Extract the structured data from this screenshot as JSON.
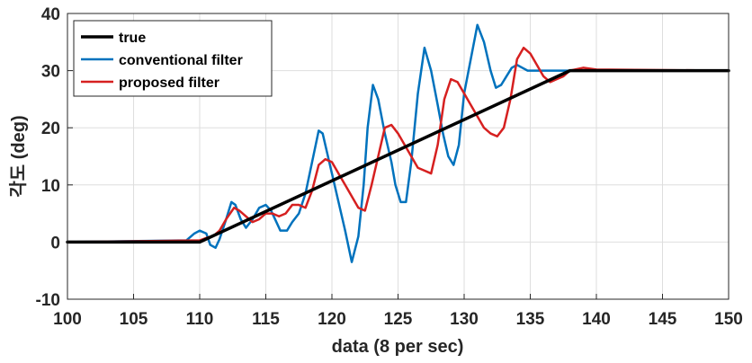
{
  "chart_data": {
    "type": "line",
    "xlabel": "data (8 per sec)",
    "ylabel": "각도 (deg)",
    "xlim": [
      100,
      150
    ],
    "ylim": [
      -10,
      40
    ],
    "xticks": [
      "100",
      "105",
      "110",
      "115",
      "120",
      "125",
      "130",
      "135",
      "140",
      "145",
      "150"
    ],
    "yticks": [
      "-10",
      "0",
      "10",
      "20",
      "30",
      "40"
    ],
    "grid": true,
    "legend_position": "top-left",
    "series": [
      {
        "name": "true",
        "color": "#000000",
        "width": 3.5,
        "x": [
          100,
          110,
          138,
          150
        ],
        "y": [
          0,
          0,
          30,
          30
        ]
      },
      {
        "name": "conventional filter",
        "color": "#0072BD",
        "width": 2.5,
        "x": [
          100,
          109,
          109.6,
          110,
          110.5,
          110.8,
          111.2,
          111.5,
          112,
          112.4,
          112.7,
          113.1,
          113.5,
          114,
          114.5,
          115,
          115.4,
          115.7,
          116.1,
          116.6,
          117,
          117.5,
          118,
          118.5,
          119,
          119.3,
          119.7,
          120.1,
          120.5,
          121,
          121.5,
          122,
          122.4,
          122.7,
          123.1,
          123.5,
          124,
          124.5,
          124.8,
          125.2,
          125.6,
          126,
          126.5,
          127,
          127.5,
          128,
          128.4,
          128.8,
          129.2,
          129.6,
          130,
          130.5,
          131,
          131.5,
          132,
          132.4,
          132.8,
          133.2,
          133.6,
          134,
          134.4,
          134.8,
          135.1,
          135.6,
          136,
          136.5,
          137,
          137.5,
          138,
          139,
          140,
          150
        ],
        "y": [
          0,
          0.3,
          1.5,
          2,
          1.5,
          -0.5,
          -1,
          0.5,
          4,
          7,
          6.5,
          4,
          2.5,
          4,
          6,
          6.5,
          5.5,
          4,
          2,
          2,
          3.5,
          5,
          8.5,
          14,
          19.5,
          19,
          15,
          11,
          7,
          2,
          -3.5,
          1,
          10,
          20,
          27.5,
          25,
          19,
          14,
          10,
          7,
          7,
          14,
          26,
          34,
          30,
          24,
          19,
          15,
          13.5,
          17,
          26,
          32,
          38,
          35,
          30,
          27,
          27.5,
          29,
          30.5,
          31,
          30.5,
          30,
          30,
          30,
          30,
          30,
          30,
          30,
          30,
          30,
          30,
          30
        ]
      },
      {
        "name": "proposed filter",
        "color": "#D62020",
        "width": 2.5,
        "x": [
          100,
          107,
          110,
          110.6,
          111,
          111.5,
          112,
          112.6,
          113,
          113.5,
          114,
          114.5,
          115,
          115.5,
          116,
          116.5,
          117,
          117.5,
          118,
          118.5,
          119,
          119.5,
          120,
          120.5,
          121,
          121.5,
          122,
          122.5,
          123,
          123.5,
          124,
          124.5,
          125,
          125.5,
          126,
          126.5,
          127,
          127.5,
          128,
          128.5,
          129,
          129.5,
          130,
          130.5,
          131,
          131.5,
          132,
          132.5,
          133,
          133.5,
          134,
          134.5,
          135,
          135.5,
          136,
          136.5,
          137,
          137.5,
          138,
          139,
          140,
          150
        ],
        "y": [
          0,
          0.2,
          0.3,
          0.8,
          1,
          2,
          4,
          6,
          5.5,
          4.5,
          3.5,
          4,
          5,
          5,
          4.5,
          5,
          6.5,
          6.5,
          6,
          9,
          13.5,
          14.5,
          14,
          12,
          10,
          8,
          6,
          5.5,
          10,
          15,
          20,
          20.5,
          19,
          17,
          15,
          13,
          12.5,
          12,
          17,
          25,
          28.5,
          28,
          26,
          24,
          22,
          20,
          19,
          18.5,
          20,
          25,
          32,
          34,
          33,
          31,
          29,
          28,
          28.5,
          29,
          30,
          30.5,
          30.2,
          30
        ]
      }
    ]
  }
}
